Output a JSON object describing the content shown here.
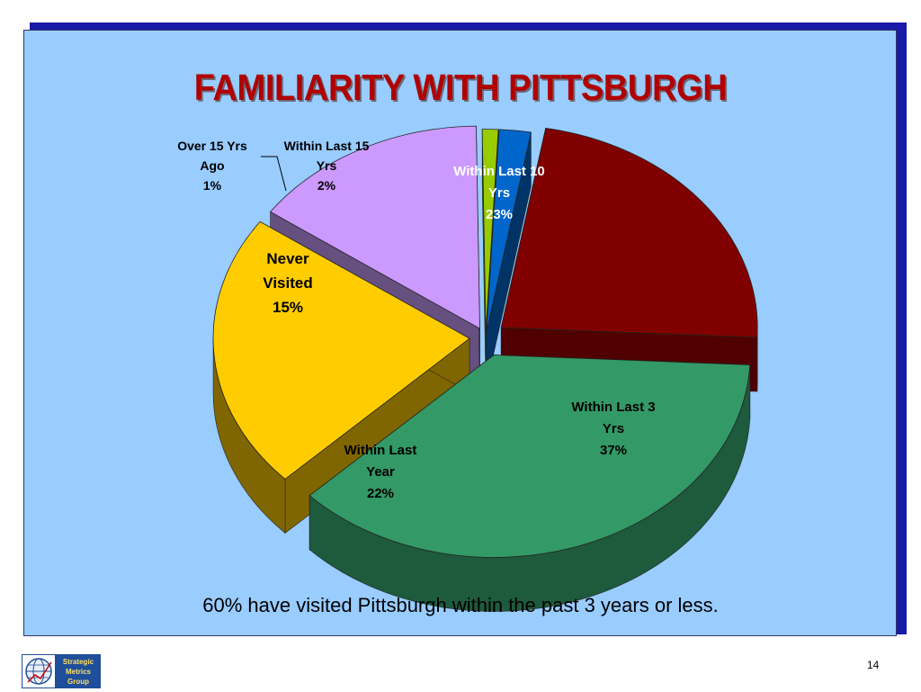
{
  "slide": {
    "title": "FAMILIARITY WITH PITTSBURGH",
    "caption": "60% have visited Pittsburgh within the past 3 years or less.",
    "page_number": "14"
  },
  "logo": {
    "line1": "Strategic",
    "line2": "Metrics",
    "line3": "Group"
  },
  "chart_data": {
    "type": "pie",
    "title": "FAMILIARITY WITH PITTSBURGH",
    "exploded": true,
    "three_d": true,
    "legend": "none",
    "slices": [
      {
        "label": [
          "Within Last 10",
          "Yrs"
        ],
        "value": 23,
        "value_label": "23%",
        "color": "#800000",
        "side_color": "#500000",
        "label_color": "#ffffff"
      },
      {
        "label": [
          "Within Last 3",
          "Yrs"
        ],
        "value": 37,
        "value_label": "37%",
        "color": "#339966",
        "side_color": "#1e5a3c",
        "label_color": "#000000"
      },
      {
        "label": [
          "Within Last",
          "Year"
        ],
        "value": 22,
        "value_label": "22%",
        "color": "#ffcc00",
        "side_color": "#806600",
        "label_color": "#000000"
      },
      {
        "label": [
          "Never",
          "Visited"
        ],
        "value": 15,
        "value_label": "15%",
        "color": "#cc99ff",
        "side_color": "#665080",
        "label_color": "#000000"
      },
      {
        "label": [
          "Over 15  Yrs",
          "Ago"
        ],
        "value": 1,
        "value_label": "1%",
        "color": "#99cc00",
        "side_color": "#4d6600",
        "label_color": "#000000"
      },
      {
        "label": [
          "Within Last 15",
          "Yrs"
        ],
        "value": 2,
        "value_label": "2%",
        "color": "#0066cc",
        "side_color": "#003366",
        "label_color": "#000000"
      }
    ]
  }
}
